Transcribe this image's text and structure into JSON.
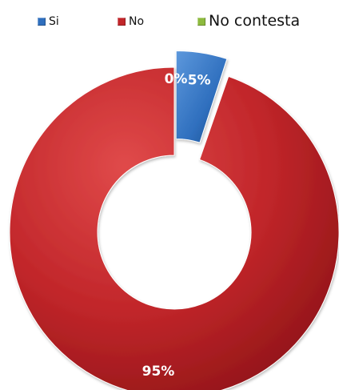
{
  "chart_data": {
    "type": "pie",
    "variant": "donut",
    "title": "",
    "legend_position": "top",
    "exploded_series": "Si",
    "series": [
      {
        "name": "Si",
        "value": 5,
        "label": "5%",
        "color": "#2f6fbe"
      },
      {
        "name": "No",
        "value": 95,
        "label": "95%",
        "color": "#c1262a"
      },
      {
        "name": "No contesta",
        "value": 0,
        "label": "0%",
        "color": "#8dba3e"
      }
    ]
  }
}
